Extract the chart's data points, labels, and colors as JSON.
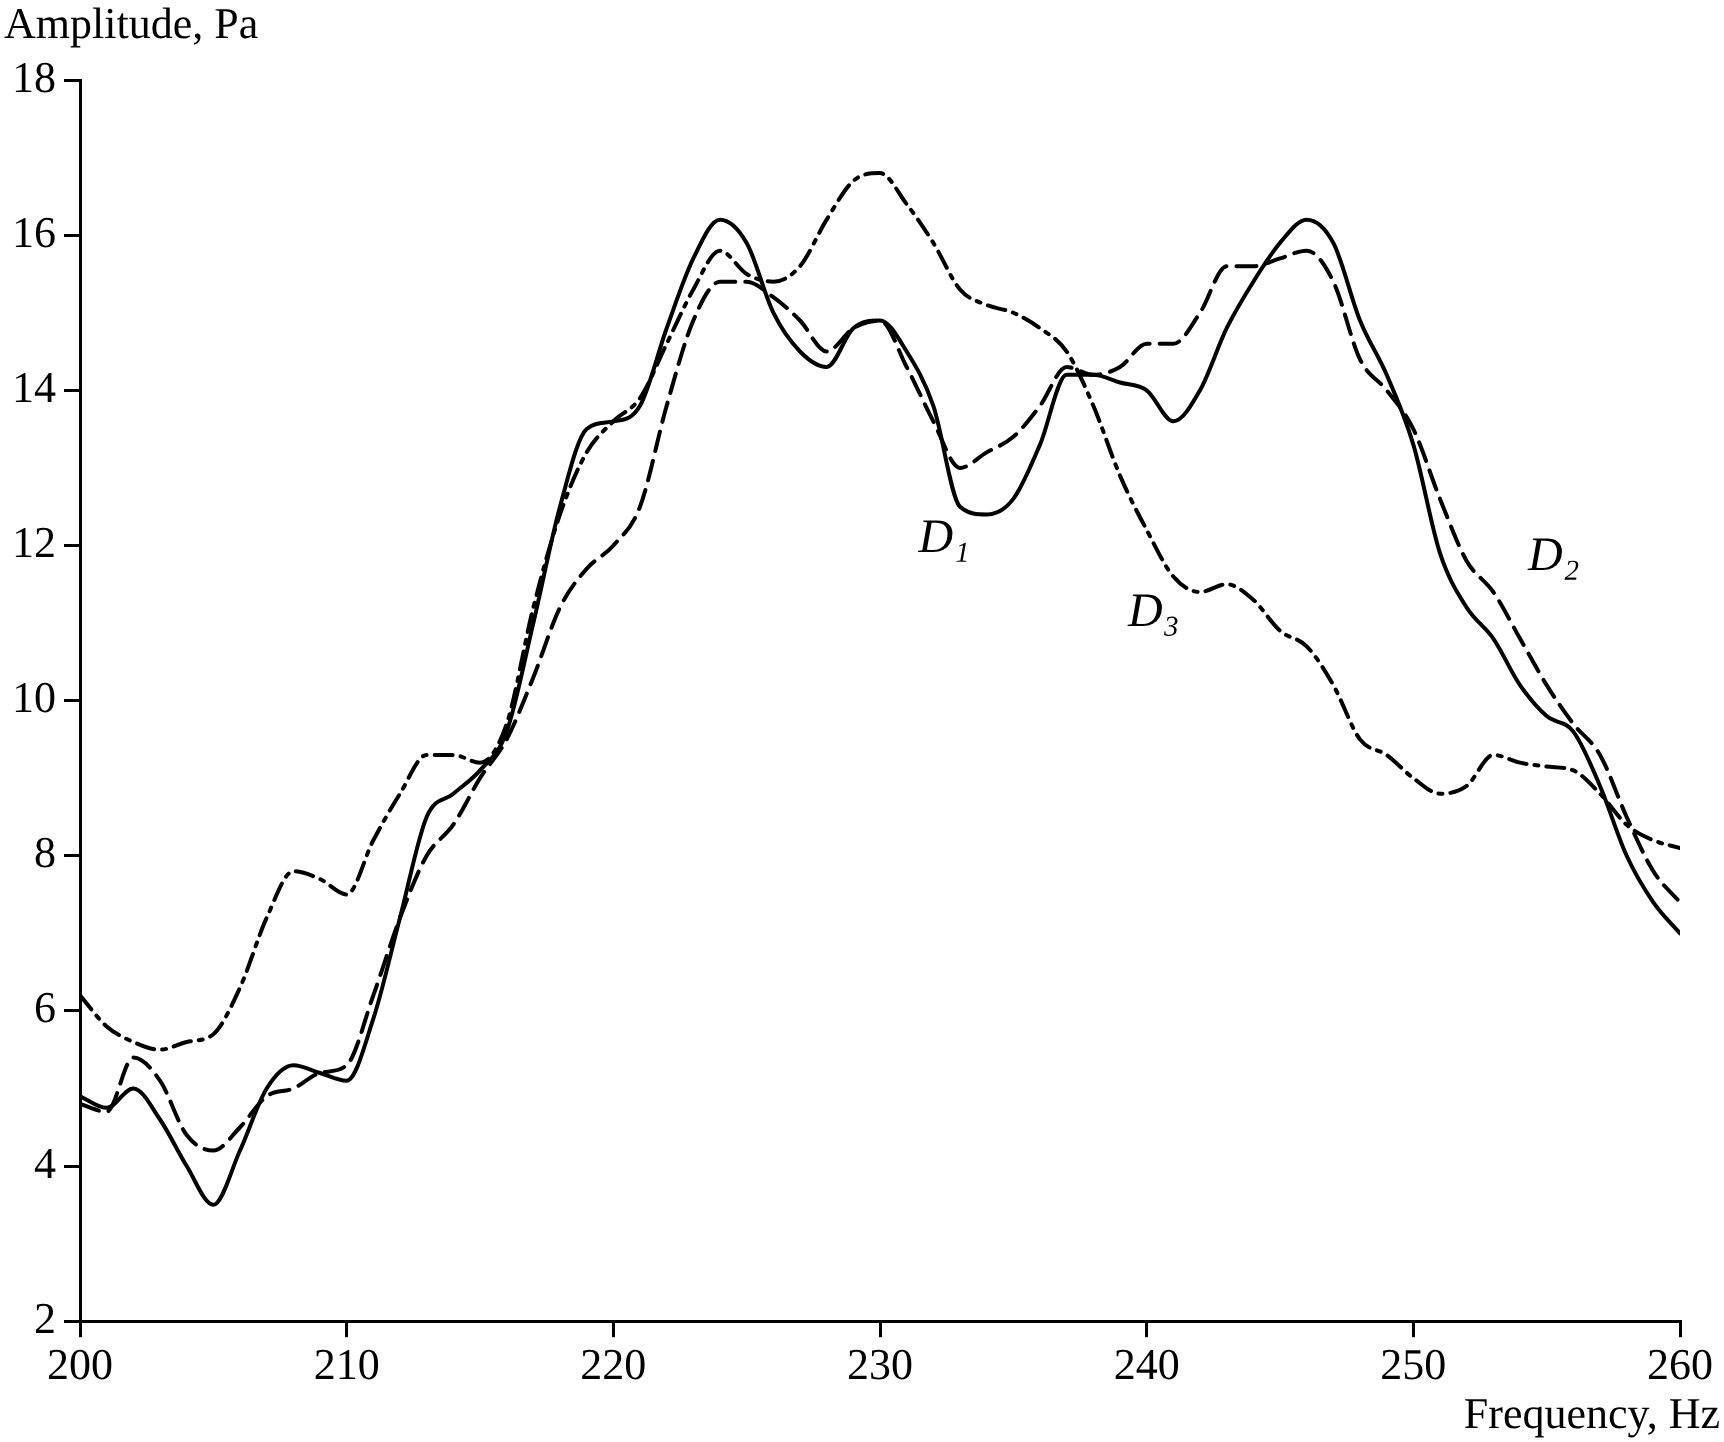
{
  "chart_data": {
    "type": "line",
    "xlabel": "Frequency, Hz",
    "ylabel": "Amplitude, Pa",
    "xlim": [
      200,
      260
    ],
    "xticks": [
      200,
      210,
      220,
      230,
      240,
      250,
      260
    ],
    "ylim": [
      2,
      18
    ],
    "yticks": [
      2,
      4,
      6,
      8,
      10,
      12,
      14,
      16,
      18
    ],
    "grid": false,
    "legend": false,
    "marker": "none",
    "x": [
      200,
      201,
      202,
      203,
      204,
      205,
      206,
      207,
      208,
      209,
      210,
      211,
      212,
      213,
      214,
      215,
      216,
      217,
      218,
      219,
      220,
      221,
      222,
      223,
      224,
      225,
      226,
      227,
      228,
      229,
      230,
      231,
      232,
      233,
      234,
      235,
      236,
      237,
      238,
      239,
      240,
      241,
      242,
      243,
      244,
      245,
      246,
      247,
      248,
      249,
      250,
      251,
      252,
      253,
      254,
      255,
      256,
      257,
      258,
      259,
      260
    ],
    "series": [
      {
        "name": "D₁",
        "color": "#000000",
        "line_style": "solid",
        "values": [
          4.9,
          4.75,
          5.0,
          4.6,
          4.0,
          3.5,
          4.2,
          5.0,
          5.3,
          5.2,
          5.1,
          5.9,
          7.2,
          8.5,
          8.8,
          9.1,
          9.6,
          11.0,
          12.5,
          13.5,
          13.6,
          13.8,
          14.8,
          15.7,
          16.2,
          15.9,
          15.0,
          14.5,
          14.3,
          14.8,
          14.9,
          14.5,
          13.8,
          12.5,
          12.4,
          12.6,
          13.3,
          14.2,
          14.2,
          14.1,
          14.0,
          13.6,
          14.0,
          14.8,
          15.4,
          15.9,
          16.2,
          15.9,
          14.9,
          14.2,
          13.3,
          11.9,
          11.2,
          10.8,
          10.2,
          9.8,
          9.6,
          8.9,
          8.0,
          7.4,
          7.0
        ]
      },
      {
        "name": "D₂",
        "color": "#000000",
        "line_style": "dashed",
        "values": [
          4.8,
          4.7,
          5.4,
          5.1,
          4.4,
          4.2,
          4.5,
          4.9,
          5.0,
          5.2,
          5.3,
          6.2,
          7.2,
          8.0,
          8.4,
          9.0,
          9.5,
          10.3,
          11.2,
          11.7,
          12.0,
          12.5,
          13.8,
          14.9,
          15.4,
          15.4,
          15.2,
          14.9,
          14.5,
          14.8,
          14.9,
          14.3,
          13.6,
          13.0,
          13.2,
          13.4,
          13.8,
          14.3,
          14.2,
          14.3,
          14.6,
          14.6,
          15.0,
          15.6,
          15.6,
          15.7,
          15.8,
          15.4,
          14.4,
          14.0,
          13.5,
          12.6,
          11.8,
          11.4,
          10.8,
          10.2,
          9.7,
          9.3,
          8.5,
          7.8,
          7.4
        ]
      },
      {
        "name": "D₃",
        "color": "#000000",
        "line_style": "dashdot",
        "values": [
          6.2,
          5.8,
          5.6,
          5.5,
          5.6,
          5.7,
          6.3,
          7.2,
          7.8,
          7.7,
          7.5,
          8.2,
          8.8,
          9.3,
          9.3,
          9.2,
          9.7,
          11.2,
          12.4,
          13.2,
          13.6,
          13.9,
          14.6,
          15.3,
          15.8,
          15.5,
          15.4,
          15.6,
          16.2,
          16.7,
          16.8,
          16.4,
          15.9,
          15.3,
          15.1,
          15.0,
          14.8,
          14.5,
          13.8,
          12.9,
          12.2,
          11.6,
          11.4,
          11.5,
          11.3,
          10.9,
          10.7,
          10.2,
          9.5,
          9.3,
          9.0,
          8.8,
          8.9,
          9.3,
          9.2,
          9.15,
          9.1,
          8.8,
          8.4,
          8.2,
          8.1
        ]
      }
    ]
  }
}
